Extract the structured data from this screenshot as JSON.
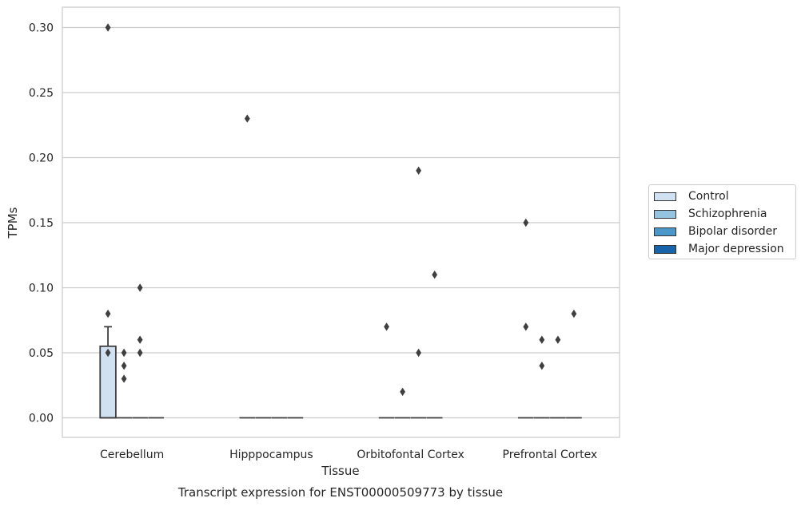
{
  "chart_data": {
    "type": "box",
    "xlabel": "Tissue",
    "ylabel": "TPMs",
    "caption": "Transcript expression for ENST00000509773 by tissue",
    "ylim": [
      -0.015,
      0.315
    ],
    "yticks": [
      "0.00",
      "0.05",
      "0.10",
      "0.15",
      "0.20",
      "0.25",
      "0.30"
    ],
    "grid": "horizontal",
    "legend_position": "right",
    "categories": [
      "Cerebellum",
      "Hipppocampus",
      "Orbitofontal Cortex",
      "Prefrontal Cortex"
    ],
    "series": [
      {
        "name": "Control",
        "color": "#d0e1f2",
        "boxes": [
          {
            "q1": 0.0,
            "median": 0.0,
            "q3": 0.055,
            "whisker_low": 0.0,
            "whisker_high": 0.07,
            "outliers": [
              0.3,
              0.08,
              0.05
            ]
          },
          {
            "q1": 0.0,
            "median": 0.0,
            "q3": 0.0,
            "whisker_low": 0.0,
            "whisker_high": 0.0,
            "outliers": [
              0.23
            ]
          },
          {
            "q1": 0.0,
            "median": 0.0,
            "q3": 0.0,
            "whisker_low": 0.0,
            "whisker_high": 0.0,
            "outliers": [
              0.07
            ]
          },
          {
            "q1": 0.0,
            "median": 0.0,
            "q3": 0.0,
            "whisker_low": 0.0,
            "whisker_high": 0.0,
            "outliers": [
              0.15,
              0.07
            ]
          }
        ]
      },
      {
        "name": "Schizophrenia",
        "color": "#94c4df",
        "boxes": [
          {
            "q1": 0.0,
            "median": 0.0,
            "q3": 0.0,
            "whisker_low": 0.0,
            "whisker_high": 0.0,
            "outliers": [
              0.05,
              0.04,
              0.03
            ]
          },
          {
            "q1": 0.0,
            "median": 0.0,
            "q3": 0.0,
            "whisker_low": 0.0,
            "whisker_high": 0.0,
            "outliers": []
          },
          {
            "q1": 0.0,
            "median": 0.0,
            "q3": 0.0,
            "whisker_low": 0.0,
            "whisker_high": 0.0,
            "outliers": [
              0.02
            ]
          },
          {
            "q1": 0.0,
            "median": 0.0,
            "q3": 0.0,
            "whisker_low": 0.0,
            "whisker_high": 0.0,
            "outliers": [
              0.06,
              0.04
            ]
          }
        ]
      },
      {
        "name": "Bipolar disorder",
        "color": "#4a98c9",
        "boxes": [
          {
            "q1": 0.0,
            "median": 0.0,
            "q3": 0.0,
            "whisker_low": 0.0,
            "whisker_high": 0.0,
            "outliers": [
              0.1,
              0.06,
              0.05
            ]
          },
          {
            "q1": 0.0,
            "median": 0.0,
            "q3": 0.0,
            "whisker_low": 0.0,
            "whisker_high": 0.0,
            "outliers": []
          },
          {
            "q1": 0.0,
            "median": 0.0,
            "q3": 0.0,
            "whisker_low": 0.0,
            "whisker_high": 0.0,
            "outliers": [
              0.19,
              0.05
            ]
          },
          {
            "q1": 0.0,
            "median": 0.0,
            "q3": 0.0,
            "whisker_low": 0.0,
            "whisker_high": 0.0,
            "outliers": [
              0.06
            ]
          }
        ]
      },
      {
        "name": "Major depression",
        "color": "#1764ab",
        "boxes": [
          {
            "q1": 0.0,
            "median": 0.0,
            "q3": 0.0,
            "whisker_low": 0.0,
            "whisker_high": 0.0,
            "outliers": []
          },
          {
            "q1": 0.0,
            "median": 0.0,
            "q3": 0.0,
            "whisker_low": 0.0,
            "whisker_high": 0.0,
            "outliers": []
          },
          {
            "q1": 0.0,
            "median": 0.0,
            "q3": 0.0,
            "whisker_low": 0.0,
            "whisker_high": 0.0,
            "outliers": [
              0.11
            ]
          },
          {
            "q1": 0.0,
            "median": 0.0,
            "q3": 0.0,
            "whisker_low": 0.0,
            "whisker_high": 0.0,
            "outliers": [
              0.08
            ]
          }
        ]
      }
    ]
  }
}
